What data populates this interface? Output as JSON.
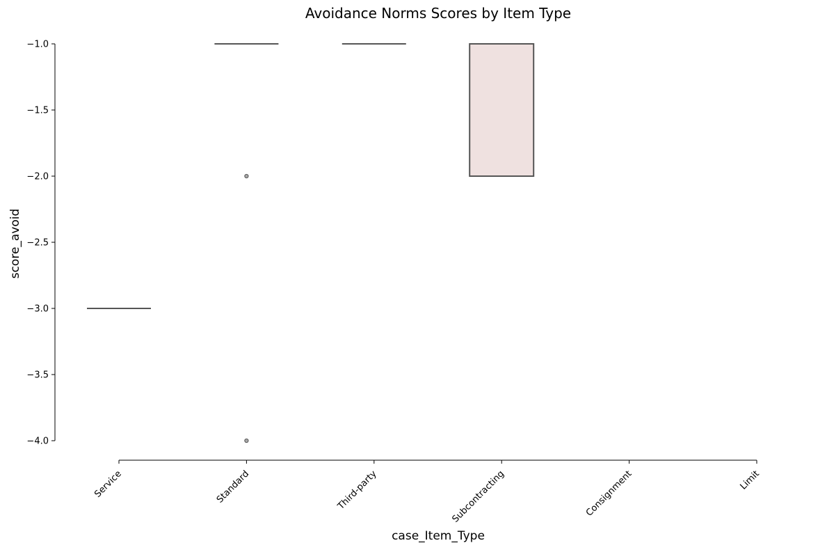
{
  "chart_data": {
    "type": "box",
    "title": "Avoidance Norms Scores by Item Type",
    "xlabel": "case_Item_Type",
    "ylabel": "score_avoid",
    "categories": [
      "Service",
      "Standard",
      "Third-party",
      "Subcontracting",
      "Consignment",
      "Limit"
    ],
    "ylim": [
      -4.0,
      -1.0
    ],
    "yticks": [
      -1.0,
      -1.5,
      -2.0,
      -2.5,
      -3.0,
      -3.5,
      -4.0
    ],
    "ytick_labels": [
      "−1.0",
      "−1.5",
      "−2.0",
      "−2.5",
      "−3.0",
      "−3.5",
      "−4.0"
    ],
    "grid": false,
    "boxes": [
      {
        "category": "Service",
        "q1": -3.0,
        "median": -3.0,
        "q3": -3.0,
        "whisker_low": -3.0,
        "whisker_high": -3.0,
        "outliers": []
      },
      {
        "category": "Standard",
        "q1": -1.0,
        "median": -1.0,
        "q3": -1.0,
        "whisker_low": -1.0,
        "whisker_high": -1.0,
        "outliers": [
          -2.0,
          -4.0
        ]
      },
      {
        "category": "Third-party",
        "q1": -1.0,
        "median": -1.0,
        "q3": -1.0,
        "whisker_low": -1.0,
        "whisker_high": -1.0,
        "outliers": []
      },
      {
        "category": "Subcontracting",
        "q1": -2.0,
        "median": -1.0,
        "q3": -1.0,
        "whisker_low": -2.0,
        "whisker_high": -1.0,
        "outliers": []
      }
    ],
    "colors": {
      "Service": "#c9d6e8",
      "Standard": "#d9e4d0",
      "Third-party": "#e0d9ec",
      "Subcontracting": "#efe1e0",
      "line": "#555555",
      "outlier_fill": "#a8a8a8"
    }
  }
}
